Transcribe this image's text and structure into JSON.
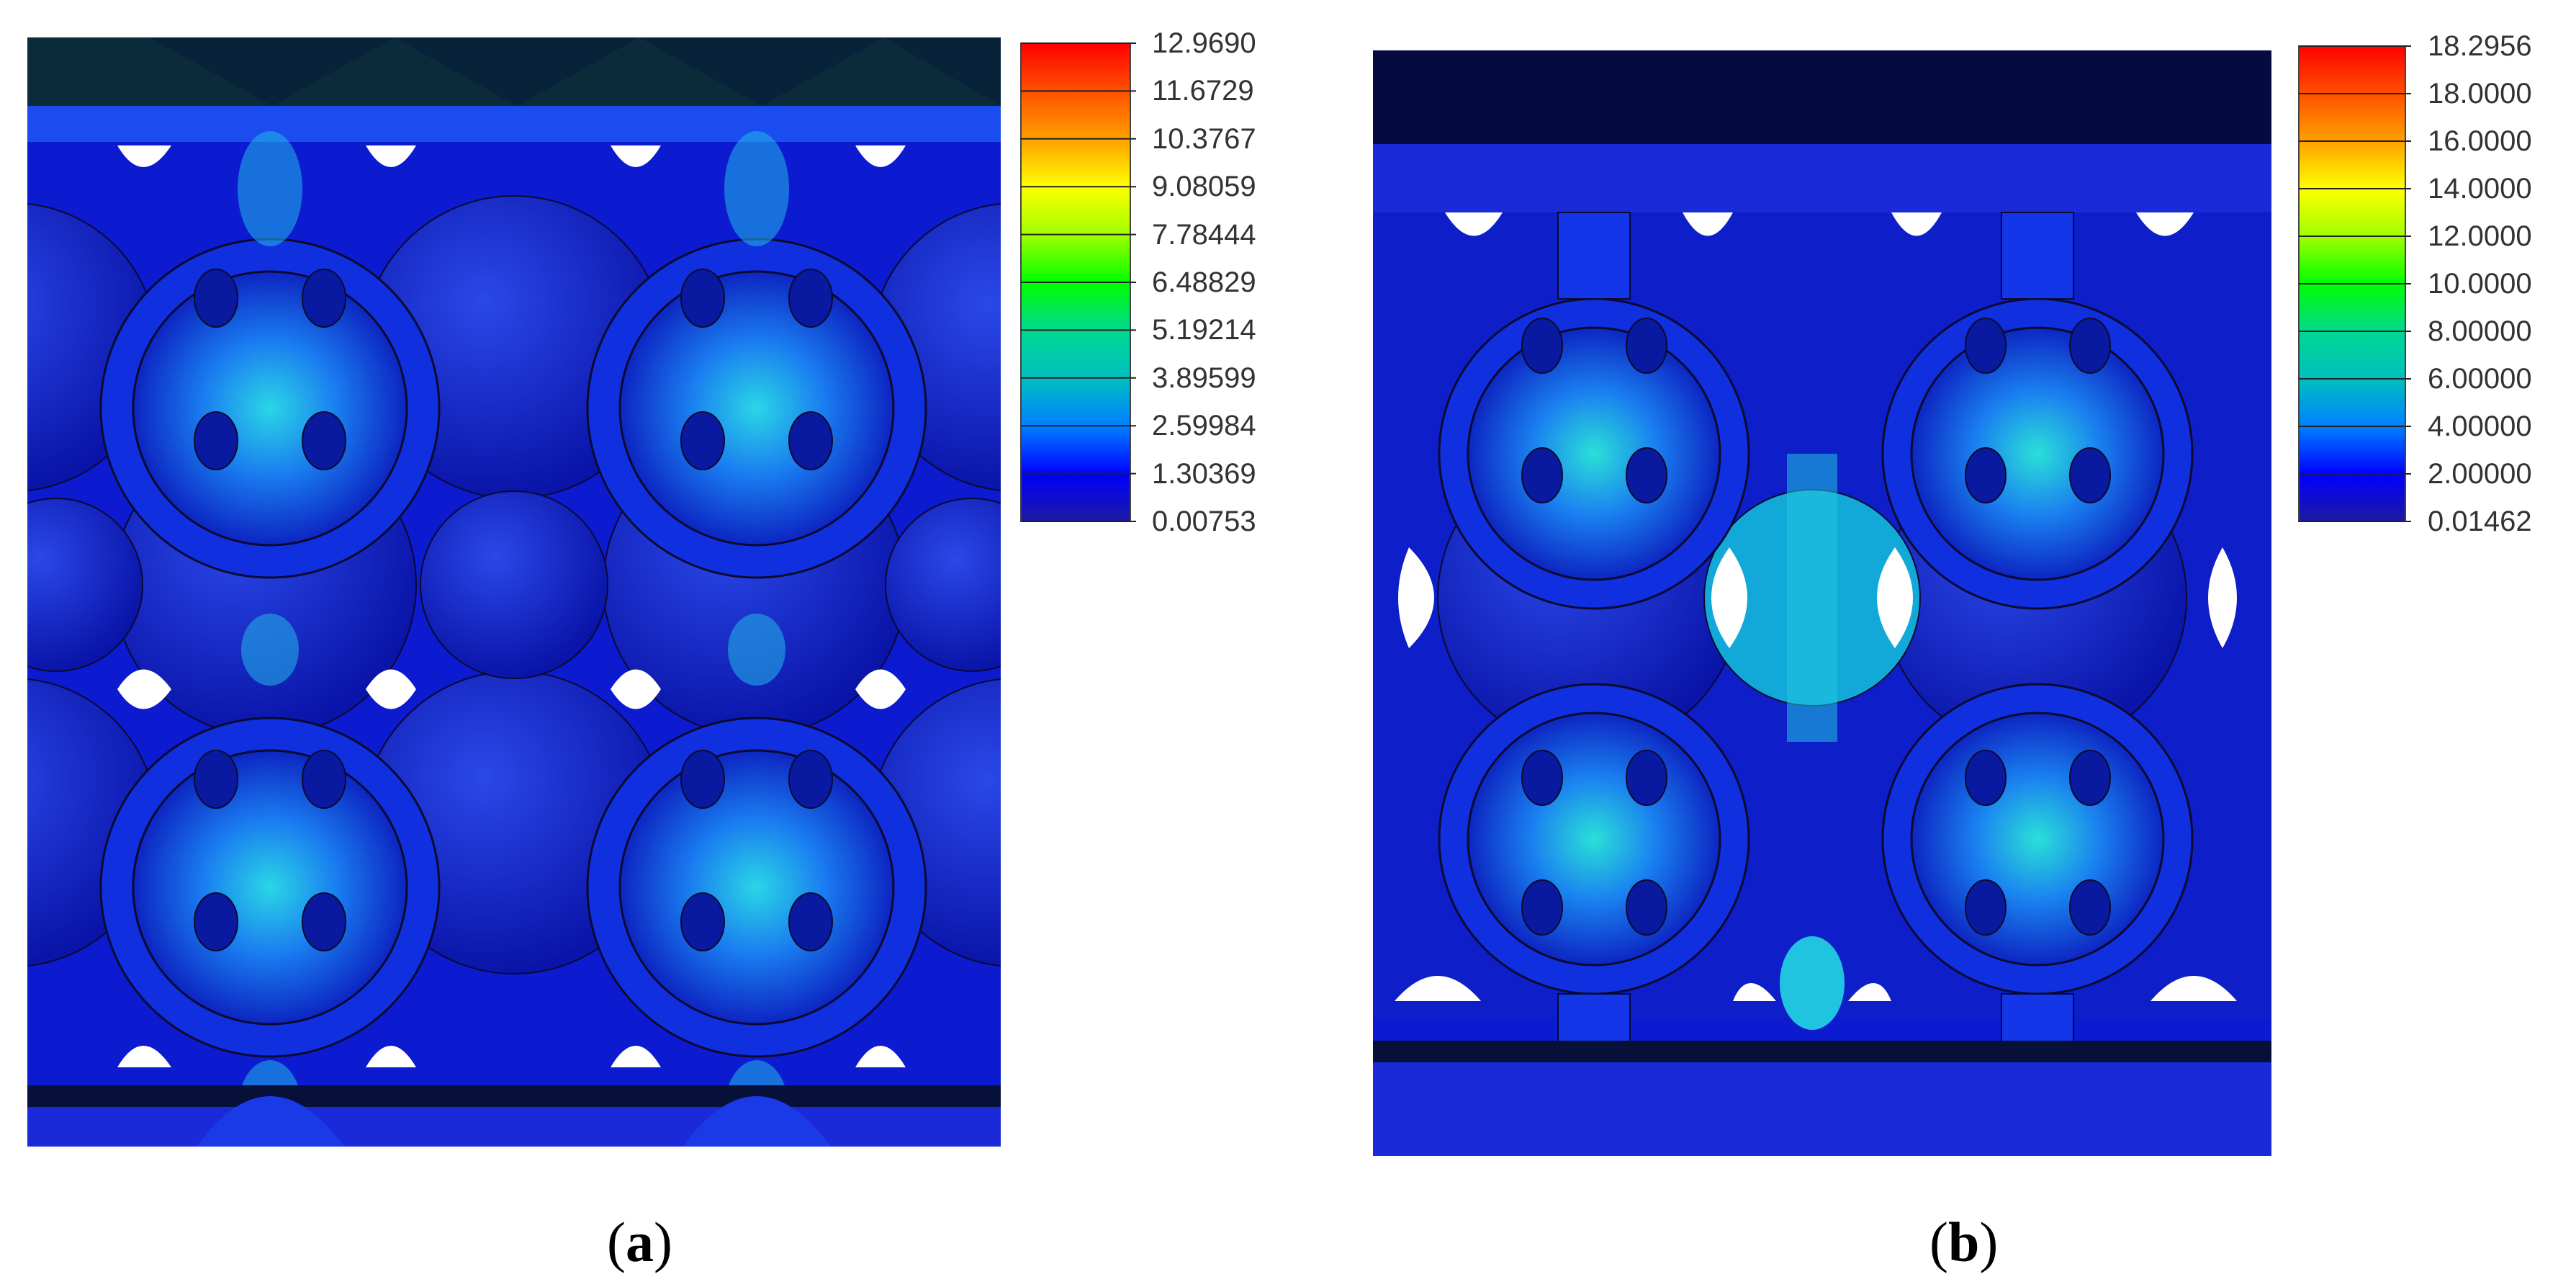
{
  "panels": [
    {
      "id": "a",
      "caption_letter": "a",
      "colorbar": {
        "colors": [
          "#1c1aa0",
          "#0000ff",
          "#0080ff",
          "#00c0c0",
          "#00d890",
          "#00ff00",
          "#a0ff00",
          "#ffff00",
          "#ffa000",
          "#ff5000",
          "#ff0000"
        ],
        "labels": [
          "12.9690",
          "11.6729",
          "10.3767",
          "9.08059",
          "7.78444",
          "6.48829",
          "5.19214",
          "3.89599",
          "2.59984",
          "1.30369",
          "0.00753"
        ]
      }
    },
    {
      "id": "b",
      "caption_letter": "b",
      "colorbar": {
        "colors": [
          "#1c1aa0",
          "#0000ff",
          "#0080ff",
          "#00c0c0",
          "#00d890",
          "#00ff00",
          "#a0ff00",
          "#ffff00",
          "#ffa000",
          "#ff5000",
          "#ff0000"
        ],
        "labels": [
          "18.2956",
          "18.0000",
          "16.0000",
          "14.0000",
          "12.0000",
          "10.0000",
          "8.00000",
          "6.00000",
          "4.00000",
          "2.00000",
          "0.01462"
        ]
      }
    }
  ],
  "palette": {
    "deep_blue": "#0a18c8",
    "mid_blue": "#1430e6",
    "cyan_glow": "#22c8e0",
    "dark_navy": "#061038",
    "slab_blue": "#1a2ad8",
    "outline": "#0a0a30"
  }
}
